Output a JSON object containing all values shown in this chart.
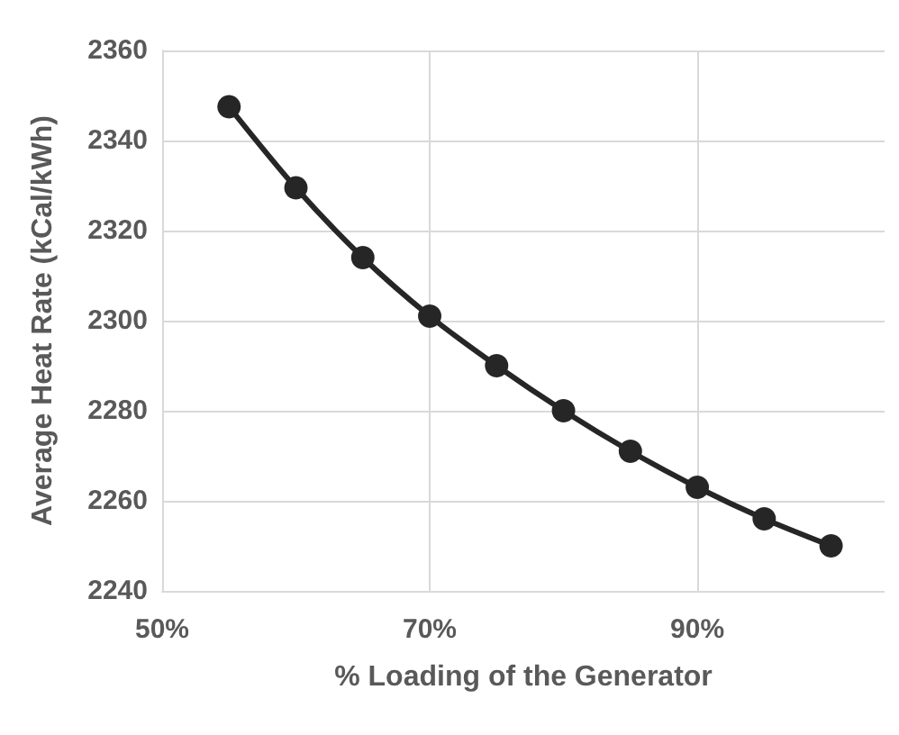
{
  "chart_data": {
    "type": "line",
    "xlabel": "% Loading of the Generator",
    "ylabel": "Average Heat Rate (kCal/kWh)",
    "x": [
      55,
      60,
      65,
      70,
      75,
      80,
      85,
      90,
      95,
      100
    ],
    "series": [
      {
        "color": "#262626",
        "values": [
          2347.5,
          2329.5,
          2314,
          2301,
          2290,
          2280,
          2271,
          2263,
          2256,
          2250
        ]
      }
    ],
    "xlim": [
      50,
      104
    ],
    "xticks": [
      {
        "value": 50,
        "label": "50%"
      },
      {
        "value": 70,
        "label": "70%"
      },
      {
        "value": 90,
        "label": "90%"
      }
    ],
    "ylim": [
      2240,
      2360
    ],
    "yticks": [
      2240,
      2260,
      2280,
      2300,
      2320,
      2340,
      2360
    ],
    "grid": true,
    "marker": "circle",
    "line_style": "solid"
  }
}
